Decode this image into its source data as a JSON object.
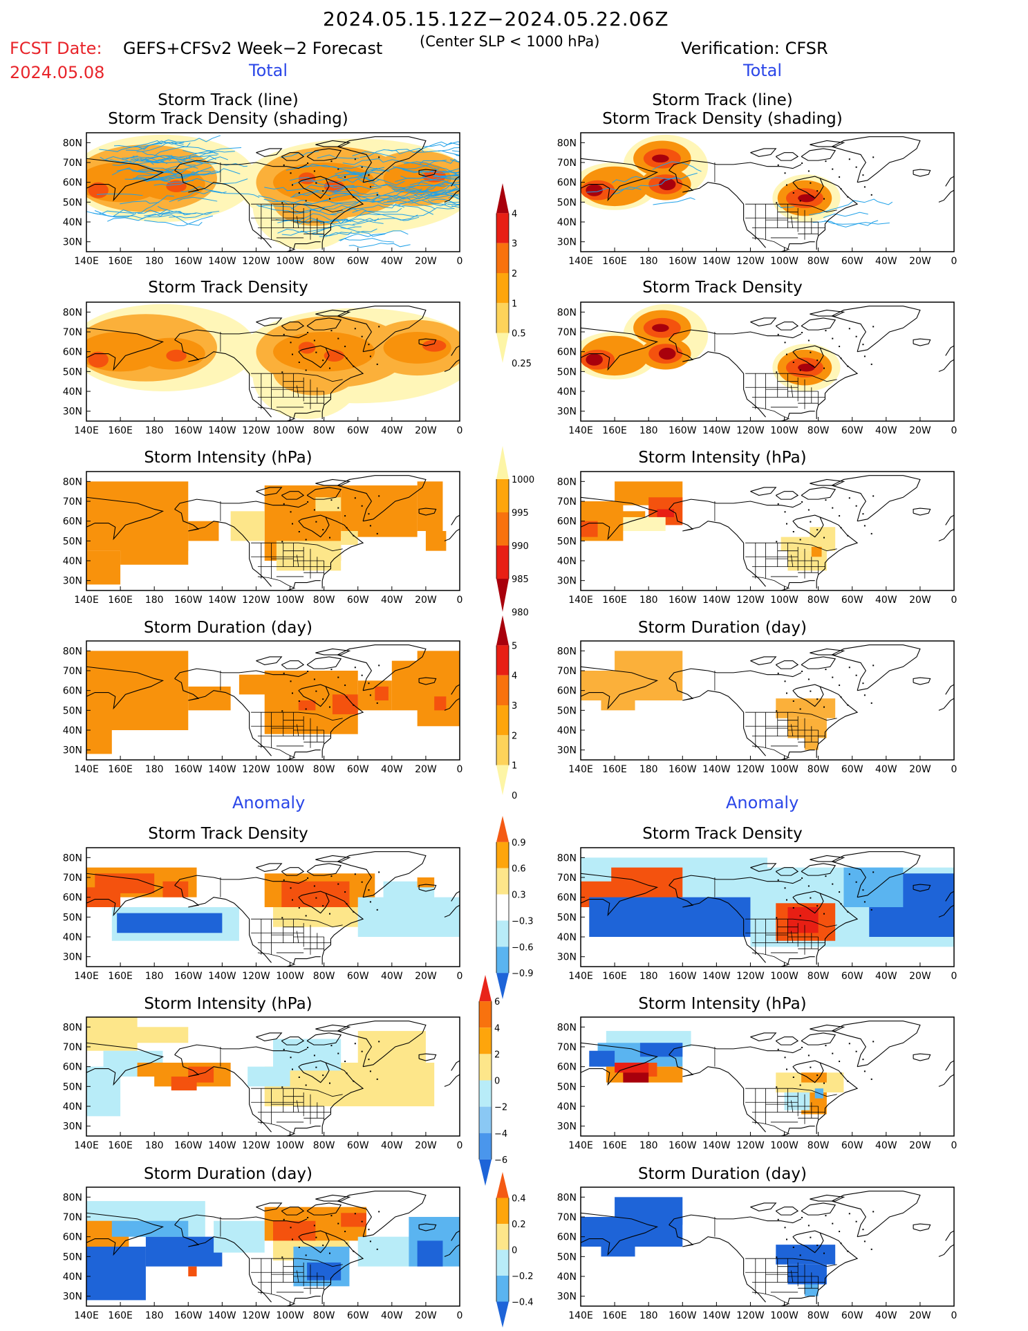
{
  "header": {
    "period": "2024.05.15.12Z−2024.05.22.06Z",
    "fcst_label": "FCST Date:",
    "fcst_date": "2024.05.08",
    "model": "GEFS+CFSv2 Week−2 Forecast",
    "criterion": "(Center SLP < 1000 hPa)",
    "verification": "Verification: CFSR"
  },
  "sections": {
    "total": "Total",
    "anomaly": "Anomaly"
  },
  "panel_titles": {
    "track_line": "Storm Track (line)",
    "track_shading": "Storm Track Density (shading)",
    "density": "Storm Track Density",
    "intensity": "Storm Intensity (hPa)",
    "duration": "Storm Duration (day)"
  },
  "axes": {
    "lat_ticks": [
      "80N",
      "70N",
      "60N",
      "50N",
      "40N",
      "30N"
    ],
    "lon_ticks": [
      "140E",
      "160E",
      "180",
      "160W",
      "140W",
      "120W",
      "100W",
      "80W",
      "60W",
      "40W",
      "20W",
      "0"
    ]
  },
  "colorbars": {
    "density_total": {
      "labels": [
        "4",
        "3",
        "2",
        "1",
        "0.5",
        "0.25"
      ],
      "colors": [
        "#a8000c",
        "#e81f14",
        "#f8720e",
        "#fea50c",
        "#fdd35a",
        "#fdf5a6"
      ]
    },
    "intensity_total": {
      "labels": [
        "1000",
        "995",
        "990",
        "985",
        "980"
      ],
      "colors": [
        "#fdf5a6",
        "#fea50c",
        "#f8720e",
        "#e81f14",
        "#a8000c"
      ]
    },
    "duration_total": {
      "labels": [
        "5",
        "4",
        "3",
        "2",
        "1",
        "0"
      ],
      "colors": [
        "#a8000c",
        "#e81f14",
        "#f8720e",
        "#fea50c",
        "#fdd35a",
        "#fdf5a6"
      ]
    },
    "density_anom": {
      "labels": [
        "0.9",
        "0.6",
        "0.3",
        "−0.3",
        "−0.6",
        "−0.9"
      ],
      "colors": [
        "#f45a14",
        "#fea50c",
        "#fde68a",
        "#ffffff",
        "#b8ecf8",
        "#5ab4f0",
        "#1e64d8"
      ]
    },
    "intensity_anom": {
      "labels": [
        "6",
        "4",
        "2",
        "0",
        "−2",
        "−4",
        "−6"
      ],
      "colors": [
        "#e8241a",
        "#f8720e",
        "#fea50c",
        "#fde68a",
        "#b8ecf8",
        "#8ac8f4",
        "#4a96ec",
        "#1e64d8"
      ]
    },
    "duration_anom": {
      "labels": [
        "0.4",
        "0.2",
        "0",
        "−0.2",
        "−0.4"
      ],
      "colors": [
        "#f45a14",
        "#fea50c",
        "#fde68a",
        "#b8ecf8",
        "#5ab4f0",
        "#1e64d8"
      ]
    }
  },
  "colors": {
    "dark_red": "#a8000c",
    "red": "#e81f14",
    "red_orange": "#f4520e",
    "orange": "#f8920c",
    "orange_light": "#fbb03a",
    "yellow": "#fde68a",
    "pale_yellow": "#fff6b8",
    "light_blue": "#b8ecf8",
    "mid_blue": "#5ab4f0",
    "blue": "#1e64d8",
    "track": "#1ea0e8"
  },
  "chart_data": [
    {
      "type": "heatmap",
      "panel": "forecast-total-storm-track-density-with-tracks",
      "series": [
        {
          "name": "Storm Track (line)"
        },
        {
          "name": "Storm Track Density (shading)"
        }
      ]
    },
    {
      "type": "heatmap",
      "panel": "verification-total-storm-track-density-with-tracks"
    },
    {
      "type": "heatmap",
      "panel": "forecast-total-storm-track-density"
    },
    {
      "type": "heatmap",
      "panel": "verification-total-storm-track-density"
    },
    {
      "type": "heatmap",
      "panel": "forecast-total-storm-intensity"
    },
    {
      "type": "heatmap",
      "panel": "verification-total-storm-intensity"
    },
    {
      "type": "heatmap",
      "panel": "forecast-total-storm-duration"
    },
    {
      "type": "heatmap",
      "panel": "verification-total-storm-duration"
    },
    {
      "type": "heatmap",
      "panel": "forecast-anomaly-storm-track-density"
    },
    {
      "type": "heatmap",
      "panel": "verification-anomaly-storm-track-density"
    },
    {
      "type": "heatmap",
      "panel": "forecast-anomaly-storm-intensity"
    },
    {
      "type": "heatmap",
      "panel": "verification-anomaly-storm-intensity"
    },
    {
      "type": "heatmap",
      "panel": "forecast-anomaly-storm-duration"
    },
    {
      "type": "heatmap",
      "panel": "verification-anomaly-storm-duration"
    }
  ]
}
